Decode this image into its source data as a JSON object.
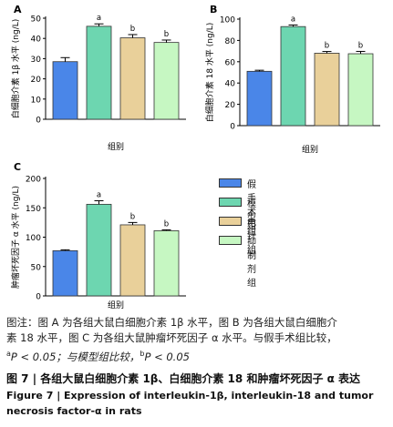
{
  "chart_data": [
    {
      "type": "bar",
      "panel": "A",
      "ylabel": "白细胞介素 1β 水平 (ng/L)",
      "xlabel": "组别",
      "ylim": [
        0,
        50
      ],
      "yticks": [
        0,
        10,
        20,
        30,
        40,
        50
      ],
      "categories": [
        "假手术组",
        "模型组",
        "电针组",
        "抑制剂组"
      ],
      "values": [
        28.5,
        46,
        40.3,
        38
      ],
      "errors": [
        2,
        1.2,
        1.6,
        1.2
      ],
      "sig_labels": [
        "",
        "a",
        "b",
        "b"
      ]
    },
    {
      "type": "bar",
      "panel": "B",
      "ylabel": "白细胞介素 18 水平 (ng/L)",
      "xlabel": "组别",
      "ylim": [
        0,
        100
      ],
      "yticks": [
        0,
        20,
        40,
        60,
        80,
        100
      ],
      "categories": [
        "假手术组",
        "模型组",
        "电针组",
        "抑制剂组"
      ],
      "values": [
        51,
        93,
        68,
        67.5
      ],
      "errors": [
        1,
        1.5,
        1.6,
        2.2
      ],
      "sig_labels": [
        "",
        "a",
        "b",
        "b"
      ]
    },
    {
      "type": "bar",
      "panel": "C",
      "ylabel": "肿瘤坏死因子 α 水平 (ng/L)",
      "xlabel": "组别",
      "ylim": [
        0,
        200
      ],
      "yticks": [
        0,
        50,
        100,
        150,
        200
      ],
      "categories": [
        "假手术组",
        "模型组",
        "电针组",
        "抑制剂组"
      ],
      "values": [
        77,
        156,
        121,
        111
      ],
      "errors": [
        1.5,
        6,
        4,
        1.5
      ],
      "sig_labels": [
        "",
        "a",
        "b",
        "b"
      ]
    }
  ],
  "legend": {
    "items": [
      {
        "label": "假手术组",
        "color": "#4A86E8"
      },
      {
        "label": "模型组",
        "color": "#6DD6B0"
      },
      {
        "label": "电针组",
        "color": "#E9D09A"
      },
      {
        "label": "抑制剂组",
        "color": "#C6F7C2"
      }
    ]
  },
  "note": {
    "line1": "图注：图 A 为各组大鼠白细胞介素 1β 水平，图 B 为各组大鼠白细胞介",
    "line2": "素 18 水平，图 C 为各组大鼠肿瘤坏死因子 α 水平。与假手术组比较，",
    "sup_a": "a",
    "line3a": "P < 0.05；与模型组比较，",
    "sup_b": "b",
    "line3b": "P < 0.05"
  },
  "caption": {
    "zh": "图 7 | 各组大鼠白细胞介素 1β、白细胞介素 18 和肿瘤坏死因子 α 表达",
    "en": "Figure 7 | Expression of interleukin-1β, interleukin-18 and tumor necrosis factor-α in rats"
  }
}
